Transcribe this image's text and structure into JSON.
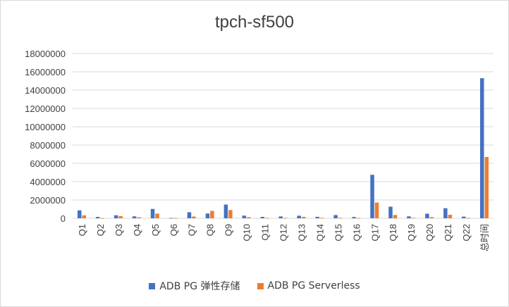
{
  "colors": {
    "series0": "#4472C4",
    "series1": "#ED7D31",
    "grid": "#d9d9d9",
    "text": "#404040"
  },
  "chart_data": {
    "type": "bar",
    "title": "tpch-sf500",
    "xlabel": "",
    "ylabel": "",
    "ylim": [
      0,
      18000000
    ],
    "yticks": [
      "0",
      "2000000",
      "4000000",
      "6000000",
      "8000000",
      "10000000",
      "12000000",
      "14000000",
      "16000000",
      "18000000"
    ],
    "grid": true,
    "legend": "bottom",
    "categories": [
      "Q1",
      "Q2",
      "Q3",
      "Q4",
      "Q5",
      "Q6",
      "Q7",
      "Q8",
      "Q9",
      "Q10",
      "Q11",
      "Q12",
      "Q13",
      "Q14",
      "Q15",
      "Q16",
      "Q17",
      "Q18",
      "Q19",
      "Q20",
      "Q21",
      "Q22",
      "总时间"
    ],
    "series": [
      {
        "name": "ADB PG 弹性存储",
        "values": [
          870000,
          150000,
          330000,
          210000,
          1020000,
          40000,
          660000,
          520000,
          1500000,
          290000,
          150000,
          200000,
          280000,
          160000,
          350000,
          140000,
          4750000,
          1270000,
          210000,
          500000,
          1100000,
          180000,
          15300000
        ]
      },
      {
        "name": "ADB PG Serverless",
        "values": [
          320000,
          30000,
          240000,
          110000,
          510000,
          20000,
          190000,
          810000,
          900000,
          120000,
          40000,
          40000,
          150000,
          50000,
          50000,
          40000,
          1720000,
          360000,
          50000,
          130000,
          380000,
          40000,
          6700000
        ]
      }
    ]
  }
}
